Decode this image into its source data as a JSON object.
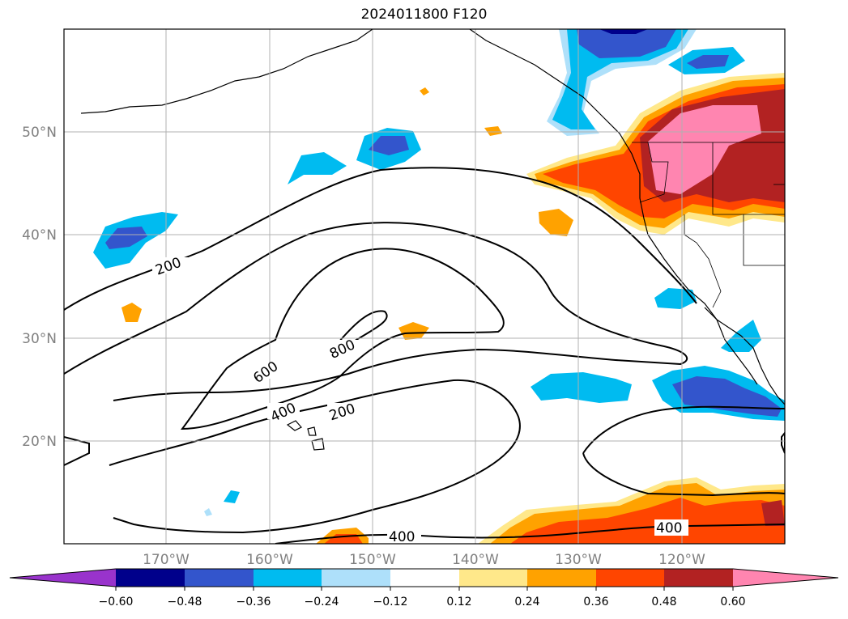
{
  "title": "2024011800 F120",
  "map": {
    "lon_range": [
      -180,
      -110
    ],
    "lat_range": [
      10,
      60
    ],
    "lat_ticks": [
      "20°N",
      "30°N",
      "40°N",
      "50°N"
    ],
    "lon_ticks": [
      "170°W",
      "160°W",
      "150°W",
      "140°W",
      "130°W",
      "120°W"
    ],
    "grid": true,
    "contour_labels": [
      "200",
      "600",
      "400",
      "800",
      "200",
      "400",
      "400"
    ]
  },
  "colorbar": {
    "ticks": [
      "−0.60",
      "−0.48",
      "−0.36",
      "−0.24",
      "−0.12",
      "0.12",
      "0.24",
      "0.36",
      "0.48",
      "0.60"
    ],
    "colors": [
      "#9933cc",
      "#00008b",
      "#3355cc",
      "#00bbf0",
      "#aee0fa",
      "#ffffff",
      "#ffe88a",
      "#ffa200",
      "#ff4500",
      "#b22222",
      "#ff85b0"
    ],
    "extend": "both"
  }
}
